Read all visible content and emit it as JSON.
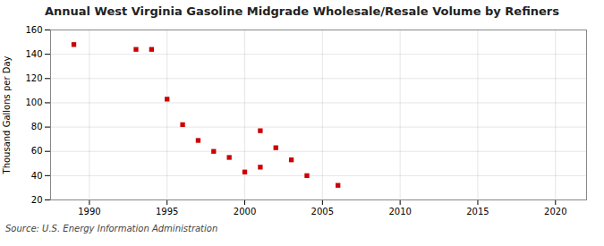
{
  "chart_data": {
    "type": "scatter",
    "title": "Annual West Virginia Gasoline Midgrade Wholesale/Resale Volume by Refiners",
    "ylabel": "Thousand Gallons per Day",
    "source": "Source: U.S. Energy Information Administration",
    "color": "#cc0000",
    "marker": "square",
    "x": [
      1989,
      1993,
      1994,
      1995,
      1996,
      1997,
      1998,
      1999,
      2000,
      2001,
      2001,
      2002,
      2003,
      2004,
      2006
    ],
    "values": [
      148,
      144,
      144,
      103,
      82,
      69,
      60,
      55,
      43,
      47,
      77,
      63,
      53,
      40,
      32
    ],
    "xlim": [
      1987.5,
      2022
    ],
    "ylim": [
      20,
      160
    ],
    "xticks": [
      1990,
      1995,
      2000,
      2005,
      2010,
      2015,
      2020
    ],
    "yticks": [
      20,
      40,
      60,
      80,
      100,
      120,
      140,
      160
    ],
    "grid": true
  }
}
